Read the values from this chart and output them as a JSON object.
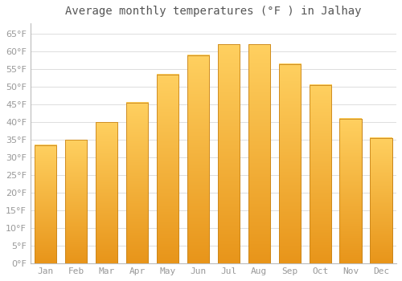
{
  "title": "Average monthly temperatures (°F ) in Jalhay",
  "months": [
    "Jan",
    "Feb",
    "Mar",
    "Apr",
    "May",
    "Jun",
    "Jul",
    "Aug",
    "Sep",
    "Oct",
    "Nov",
    "Dec"
  ],
  "values": [
    33.5,
    35.0,
    40.0,
    45.5,
    53.5,
    59.0,
    62.0,
    62.0,
    56.5,
    50.5,
    41.0,
    35.5
  ],
  "bar_color_top": "#FFC825",
  "bar_color_bottom": "#F5A623",
  "bar_edge_color": "#C8841A",
  "background_color": "#FFFFFF",
  "grid_color": "#DDDDDD",
  "tick_label_color": "#999999",
  "title_color": "#555555",
  "ylim": [
    0,
    68
  ],
  "yticks": [
    0,
    5,
    10,
    15,
    20,
    25,
    30,
    35,
    40,
    45,
    50,
    55,
    60,
    65
  ],
  "title_fontsize": 10,
  "tick_fontsize": 8,
  "fig_width": 5.0,
  "fig_height": 3.5,
  "dpi": 100
}
